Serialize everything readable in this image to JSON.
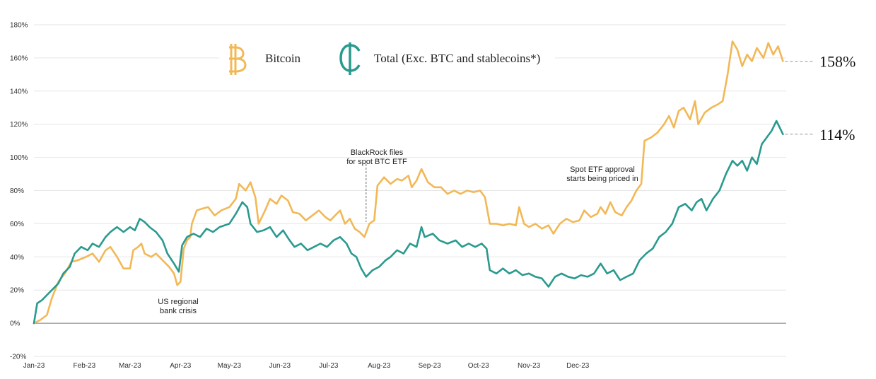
{
  "chart_data": {
    "type": "line",
    "title": "",
    "xlabel": "",
    "ylabel": "",
    "ylim": [
      -20,
      180
    ],
    "y_ticks": [
      -20,
      0,
      20,
      40,
      60,
      80,
      100,
      120,
      140,
      160,
      180
    ],
    "y_tick_labels": [
      "-20%",
      "0%",
      "20%",
      "40%",
      "60%",
      "80%",
      "100%",
      "120%",
      "140%",
      "160%",
      "180%"
    ],
    "x_tick_labels": [
      "Jan-23",
      "Feb-23",
      "Mar-23",
      "Apr-23",
      "May-23",
      "Jun-23",
      "Jul-23",
      "Aug-23",
      "Sep-23",
      "Oct-23",
      "Nov-23",
      "Dec-23"
    ],
    "x_tick_dates": [
      "2023-01-01",
      "2023-02-01",
      "2023-03-01",
      "2023-04-01",
      "2023-05-01",
      "2023-06-01",
      "2023-07-01",
      "2023-08-01",
      "2023-09-01",
      "2023-10-01",
      "2023-11-01",
      "2023-12-01"
    ],
    "grid": true,
    "legend_position": "top-center",
    "series": [
      {
        "name": "Bitcoin",
        "color": "#F2B856",
        "icon": "bitcoin-icon",
        "end_label": "158%",
        "points": [
          [
            "2023-01-01",
            0
          ],
          [
            "2023-01-05",
            2
          ],
          [
            "2023-01-09",
            5
          ],
          [
            "2023-01-12",
            15
          ],
          [
            "2023-01-16",
            25
          ],
          [
            "2023-01-20",
            30
          ],
          [
            "2023-01-24",
            37
          ],
          [
            "2023-01-28",
            38
          ],
          [
            "2023-02-02",
            40
          ],
          [
            "2023-02-06",
            42
          ],
          [
            "2023-02-10",
            37
          ],
          [
            "2023-02-14",
            44
          ],
          [
            "2023-02-17",
            46
          ],
          [
            "2023-02-21",
            40
          ],
          [
            "2023-02-25",
            33
          ],
          [
            "2023-03-01",
            33
          ],
          [
            "2023-03-03",
            44
          ],
          [
            "2023-03-06",
            46
          ],
          [
            "2023-03-08",
            48
          ],
          [
            "2023-03-10",
            42
          ],
          [
            "2023-03-14",
            40
          ],
          [
            "2023-03-17",
            42
          ],
          [
            "2023-03-21",
            38
          ],
          [
            "2023-03-25",
            34
          ],
          [
            "2023-03-28",
            30
          ],
          [
            "2023-03-30",
            23
          ],
          [
            "2023-04-01",
            25
          ],
          [
            "2023-04-03",
            45
          ],
          [
            "2023-04-05",
            50
          ],
          [
            "2023-04-07",
            52
          ],
          [
            "2023-04-08",
            60
          ],
          [
            "2023-04-11",
            68
          ],
          [
            "2023-04-14",
            69
          ],
          [
            "2023-04-18",
            70
          ],
          [
            "2023-04-22",
            65
          ],
          [
            "2023-04-26",
            68
          ],
          [
            "2023-05-01",
            70
          ],
          [
            "2023-05-05",
            75
          ],
          [
            "2023-05-07",
            84
          ],
          [
            "2023-05-11",
            80
          ],
          [
            "2023-05-14",
            85
          ],
          [
            "2023-05-17",
            76
          ],
          [
            "2023-05-19",
            60
          ],
          [
            "2023-05-23",
            68
          ],
          [
            "2023-05-26",
            75
          ],
          [
            "2023-05-30",
            72
          ],
          [
            "2023-06-02",
            77
          ],
          [
            "2023-06-06",
            74
          ],
          [
            "2023-06-09",
            67
          ],
          [
            "2023-06-13",
            66
          ],
          [
            "2023-06-17",
            62
          ],
          [
            "2023-06-21",
            65
          ],
          [
            "2023-06-25",
            68
          ],
          [
            "2023-06-29",
            64
          ],
          [
            "2023-07-02",
            62
          ],
          [
            "2023-07-05",
            65
          ],
          [
            "2023-07-08",
            68
          ],
          [
            "2023-07-11",
            60
          ],
          [
            "2023-07-14",
            63
          ],
          [
            "2023-07-17",
            57
          ],
          [
            "2023-07-20",
            55
          ],
          [
            "2023-07-23",
            52
          ],
          [
            "2023-07-26",
            60
          ],
          [
            "2023-07-29",
            62
          ],
          [
            "2023-07-31",
            83
          ],
          [
            "2023-08-04",
            88
          ],
          [
            "2023-08-08",
            84
          ],
          [
            "2023-08-12",
            87
          ],
          [
            "2023-08-15",
            86
          ],
          [
            "2023-08-19",
            89
          ],
          [
            "2023-08-21",
            82
          ],
          [
            "2023-08-24",
            86
          ],
          [
            "2023-08-27",
            93
          ],
          [
            "2023-08-31",
            85
          ],
          [
            "2023-09-04",
            82
          ],
          [
            "2023-09-08",
            82
          ],
          [
            "2023-09-12",
            78
          ],
          [
            "2023-09-16",
            80
          ],
          [
            "2023-09-20",
            78
          ],
          [
            "2023-09-24",
            80
          ],
          [
            "2023-09-28",
            79
          ],
          [
            "2023-10-02",
            80
          ],
          [
            "2023-10-05",
            76
          ],
          [
            "2023-10-08",
            60
          ],
          [
            "2023-10-12",
            60
          ],
          [
            "2023-10-16",
            59
          ],
          [
            "2023-10-20",
            60
          ],
          [
            "2023-10-24",
            59
          ],
          [
            "2023-10-26",
            70
          ],
          [
            "2023-10-29",
            60
          ],
          [
            "2023-11-01",
            58
          ],
          [
            "2023-11-05",
            60
          ],
          [
            "2023-11-09",
            57
          ],
          [
            "2023-11-13",
            59
          ],
          [
            "2023-11-16",
            54
          ],
          [
            "2023-11-20",
            60
          ],
          [
            "2023-11-24",
            63
          ],
          [
            "2023-11-28",
            61
          ],
          [
            "2023-12-02",
            62
          ],
          [
            "2023-12-05",
            68
          ],
          [
            "2023-12-09",
            64
          ],
          [
            "2023-12-13",
            66
          ],
          [
            "2023-12-15",
            70
          ],
          [
            "2023-12-18",
            66
          ],
          [
            "2023-12-21",
            73
          ],
          [
            "2023-12-24",
            67
          ],
          [
            "2023-12-28",
            65
          ],
          [
            "2023-12-31",
            70
          ],
          [
            "2024-01-03",
            74
          ],
          [
            "2024-01-06",
            80
          ],
          [
            "2024-01-09",
            84
          ],
          [
            "2024-01-11",
            110
          ],
          [
            "2024-01-15",
            112
          ],
          [
            "2024-01-19",
            115
          ],
          [
            "2024-01-23",
            120
          ],
          [
            "2024-01-26",
            125
          ],
          [
            "2024-01-29",
            118
          ],
          [
            "2024-02-01",
            128
          ],
          [
            "2024-02-04",
            130
          ],
          [
            "2024-02-08",
            123
          ],
          [
            "2024-02-11",
            134
          ],
          [
            "2024-02-13",
            120
          ],
          [
            "2024-02-17",
            127
          ],
          [
            "2024-02-21",
            130
          ],
          [
            "2024-02-25",
            132
          ],
          [
            "2024-02-28",
            134
          ],
          [
            "2024-03-02",
            150
          ],
          [
            "2024-03-05",
            170
          ],
          [
            "2024-03-08",
            165
          ],
          [
            "2024-03-11",
            155
          ],
          [
            "2024-03-14",
            162
          ],
          [
            "2024-03-17",
            158
          ],
          [
            "2024-03-20",
            166
          ],
          [
            "2024-03-24",
            160
          ],
          [
            "2024-03-27",
            169
          ],
          [
            "2024-03-30",
            162
          ],
          [
            "2024-04-02",
            167
          ],
          [
            "2024-04-05",
            158
          ]
        ]
      },
      {
        "name": "Total (Exc. BTC and stablecoins*)",
        "color": "#2A9A8E",
        "icon": "cedi-icon",
        "end_label": "114%",
        "points": [
          [
            "2023-01-01",
            0
          ],
          [
            "2023-01-03",
            12
          ],
          [
            "2023-01-06",
            14
          ],
          [
            "2023-01-10",
            18
          ],
          [
            "2023-01-13",
            21
          ],
          [
            "2023-01-16",
            24
          ],
          [
            "2023-01-19",
            30
          ],
          [
            "2023-01-23",
            34
          ],
          [
            "2023-01-26",
            42
          ],
          [
            "2023-01-30",
            46
          ],
          [
            "2023-02-03",
            44
          ],
          [
            "2023-02-06",
            48
          ],
          [
            "2023-02-10",
            46
          ],
          [
            "2023-02-14",
            52
          ],
          [
            "2023-02-17",
            55
          ],
          [
            "2023-02-21",
            58
          ],
          [
            "2023-02-25",
            55
          ],
          [
            "2023-03-01",
            58
          ],
          [
            "2023-03-04",
            56
          ],
          [
            "2023-03-07",
            63
          ],
          [
            "2023-03-10",
            61
          ],
          [
            "2023-03-13",
            58
          ],
          [
            "2023-03-17",
            55
          ],
          [
            "2023-03-21",
            50
          ],
          [
            "2023-03-24",
            42
          ],
          [
            "2023-03-28",
            36
          ],
          [
            "2023-03-31",
            31
          ],
          [
            "2023-04-02",
            47
          ],
          [
            "2023-04-05",
            52
          ],
          [
            "2023-04-09",
            54
          ],
          [
            "2023-04-13",
            52
          ],
          [
            "2023-04-17",
            57
          ],
          [
            "2023-04-21",
            55
          ],
          [
            "2023-04-25",
            58
          ],
          [
            "2023-05-01",
            60
          ],
          [
            "2023-05-05",
            66
          ],
          [
            "2023-05-09",
            73
          ],
          [
            "2023-05-12",
            70
          ],
          [
            "2023-05-14",
            60
          ],
          [
            "2023-05-18",
            55
          ],
          [
            "2023-05-22",
            56
          ],
          [
            "2023-05-26",
            58
          ],
          [
            "2023-05-30",
            52
          ],
          [
            "2023-06-03",
            56
          ],
          [
            "2023-06-07",
            50
          ],
          [
            "2023-06-10",
            46
          ],
          [
            "2023-06-14",
            48
          ],
          [
            "2023-06-18",
            44
          ],
          [
            "2023-06-22",
            46
          ],
          [
            "2023-06-26",
            48
          ],
          [
            "2023-06-30",
            46
          ],
          [
            "2023-07-04",
            50
          ],
          [
            "2023-07-08",
            52
          ],
          [
            "2023-07-12",
            48
          ],
          [
            "2023-07-15",
            42
          ],
          [
            "2023-07-18",
            40
          ],
          [
            "2023-07-21",
            33
          ],
          [
            "2023-07-24",
            28
          ],
          [
            "2023-07-28",
            32
          ],
          [
            "2023-08-01",
            34
          ],
          [
            "2023-08-05",
            38
          ],
          [
            "2023-08-08",
            40
          ],
          [
            "2023-08-12",
            44
          ],
          [
            "2023-08-16",
            42
          ],
          [
            "2023-08-20",
            48
          ],
          [
            "2023-08-24",
            46
          ],
          [
            "2023-08-27",
            58
          ],
          [
            "2023-08-29",
            52
          ],
          [
            "2023-09-03",
            54
          ],
          [
            "2023-09-07",
            50
          ],
          [
            "2023-09-12",
            48
          ],
          [
            "2023-09-17",
            50
          ],
          [
            "2023-09-21",
            46
          ],
          [
            "2023-09-25",
            48
          ],
          [
            "2023-09-29",
            46
          ],
          [
            "2023-10-03",
            48
          ],
          [
            "2023-10-06",
            45
          ],
          [
            "2023-10-08",
            32
          ],
          [
            "2023-10-12",
            30
          ],
          [
            "2023-10-16",
            33
          ],
          [
            "2023-10-20",
            30
          ],
          [
            "2023-10-24",
            32
          ],
          [
            "2023-10-28",
            29
          ],
          [
            "2023-11-01",
            30
          ],
          [
            "2023-11-05",
            28
          ],
          [
            "2023-11-09",
            27
          ],
          [
            "2023-11-13",
            22
          ],
          [
            "2023-11-17",
            28
          ],
          [
            "2023-11-21",
            30
          ],
          [
            "2023-11-25",
            28
          ],
          [
            "2023-11-29",
            27
          ],
          [
            "2023-12-03",
            29
          ],
          [
            "2023-12-07",
            28
          ],
          [
            "2023-12-11",
            30
          ],
          [
            "2023-12-15",
            36
          ],
          [
            "2023-12-19",
            30
          ],
          [
            "2023-12-23",
            32
          ],
          [
            "2023-12-27",
            26
          ],
          [
            "2023-12-31",
            28
          ],
          [
            "2024-01-04",
            30
          ],
          [
            "2024-01-08",
            38
          ],
          [
            "2024-01-12",
            42
          ],
          [
            "2024-01-16",
            45
          ],
          [
            "2024-01-20",
            52
          ],
          [
            "2024-01-24",
            55
          ],
          [
            "2024-01-28",
            60
          ],
          [
            "2024-02-01",
            70
          ],
          [
            "2024-02-05",
            72
          ],
          [
            "2024-02-09",
            68
          ],
          [
            "2024-02-12",
            73
          ],
          [
            "2024-02-15",
            75
          ],
          [
            "2024-02-18",
            68
          ],
          [
            "2024-02-22",
            75
          ],
          [
            "2024-02-26",
            80
          ],
          [
            "2024-03-01",
            90
          ],
          [
            "2024-03-05",
            98
          ],
          [
            "2024-03-08",
            95
          ],
          [
            "2024-03-11",
            98
          ],
          [
            "2024-03-14",
            92
          ],
          [
            "2024-03-17",
            100
          ],
          [
            "2024-03-20",
            96
          ],
          [
            "2024-03-23",
            108
          ],
          [
            "2024-03-26",
            112
          ],
          [
            "2024-03-29",
            116
          ],
          [
            "2024-04-01",
            122
          ],
          [
            "2024-04-05",
            114
          ]
        ]
      }
    ],
    "annotations": [
      {
        "lines": [
          "US regional",
          "bank crisis"
        ],
        "date": "2023-03-30",
        "value": 23
      },
      {
        "lines": [
          "BlackRock files",
          "for spot BTC ETF"
        ],
        "date": "2023-07-24",
        "value": 52
      },
      {
        "lines": [
          "Spot ETF approval",
          "starts being priced in"
        ],
        "date": "2024-01-10",
        "value": 84
      }
    ]
  }
}
